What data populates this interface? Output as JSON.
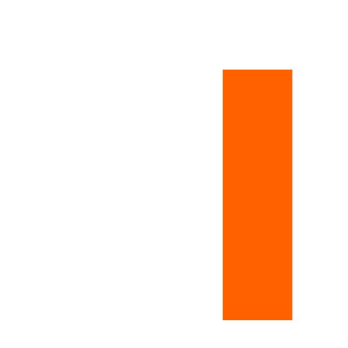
{
  "colors": {
    "background": "#ffffff",
    "bar": "#ff6000"
  }
}
